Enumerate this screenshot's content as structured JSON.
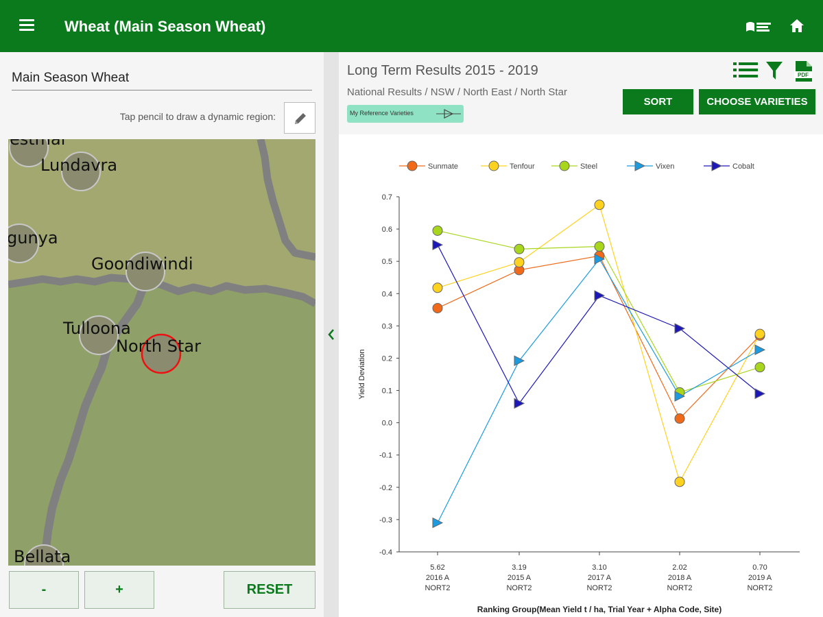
{
  "appbar": {
    "title": "Wheat (Main Season Wheat)",
    "icons": [
      "menu-icon",
      "grdc-logo-icon",
      "home-icon"
    ]
  },
  "left_panel": {
    "region_value": "Main Season Wheat",
    "pencil_hint": "Tap pencil to draw a dynamic region:",
    "map_places": [
      {
        "name": "estmar"
      },
      {
        "name": "Lundavra"
      },
      {
        "name": "gunya"
      },
      {
        "name": "Goondiwindi"
      },
      {
        "name": "Tulloona"
      },
      {
        "name": "North Star",
        "selected": true
      },
      {
        "name": "Bellata"
      }
    ],
    "buttons": {
      "zoom_out": "-",
      "zoom_in": "+",
      "reset": "RESET"
    }
  },
  "right_panel": {
    "title": "Long Term Results 2015 - 2019",
    "breadcrumb": "National Results / NSW / North East / North Star",
    "ref_chip": "My Reference Varieties",
    "sort_label": "SORT",
    "choose_label": "CHOOSE VARIETIES",
    "icons": [
      "list-icon",
      "filter-icon",
      "pdf-icon"
    ]
  },
  "colors": {
    "appbar": "#0a7a1d",
    "Sunmate": "#f06a1a",
    "Tenfour": "#ffd21f",
    "Steel": "#a8d61c",
    "Vixen": "#1b9be0",
    "Cobalt": "#1c17b8"
  },
  "chart_data": {
    "type": "line",
    "xlabel": "Ranking Group(Mean Yield t / ha, Trial Year + Alpha Code, Site)",
    "ylabel": "Yield Deviation",
    "ylim": [
      -0.4,
      0.7
    ],
    "yticks": [
      "0.7",
      "0.6",
      "0.5",
      "0.4",
      "0.3",
      "0.2",
      "0.1",
      "0.0",
      "-0.1",
      "-0.2",
      "-0.3",
      "-0.4"
    ],
    "categories": [
      [
        "5.62",
        "2016 A",
        "NORT2"
      ],
      [
        "3.19",
        "2015 A",
        "NORT2"
      ],
      [
        "3.10",
        "2017 A",
        "NORT2"
      ],
      [
        "2.02",
        "2018 A",
        "NORT2"
      ],
      [
        "0.70",
        "2019 A",
        "NORT2"
      ]
    ],
    "legend_position": "top",
    "series": [
      {
        "name": "Sunmate",
        "marker": "circle",
        "values": [
          0.355,
          0.473,
          0.517,
          0.013,
          0.27
        ]
      },
      {
        "name": "Tenfour",
        "marker": "circle",
        "values": [
          0.418,
          0.497,
          0.675,
          -0.183,
          0.275
        ]
      },
      {
        "name": "Steel",
        "marker": "circle",
        "values": [
          0.595,
          0.538,
          0.546,
          0.094,
          0.172
        ]
      },
      {
        "name": "Vixen",
        "marker": "triangle",
        "values": [
          -0.31,
          0.192,
          0.507,
          0.082,
          0.226
        ]
      },
      {
        "name": "Cobalt",
        "marker": "triangle",
        "values": [
          0.551,
          0.06,
          0.394,
          0.292,
          0.09
        ]
      }
    ]
  }
}
